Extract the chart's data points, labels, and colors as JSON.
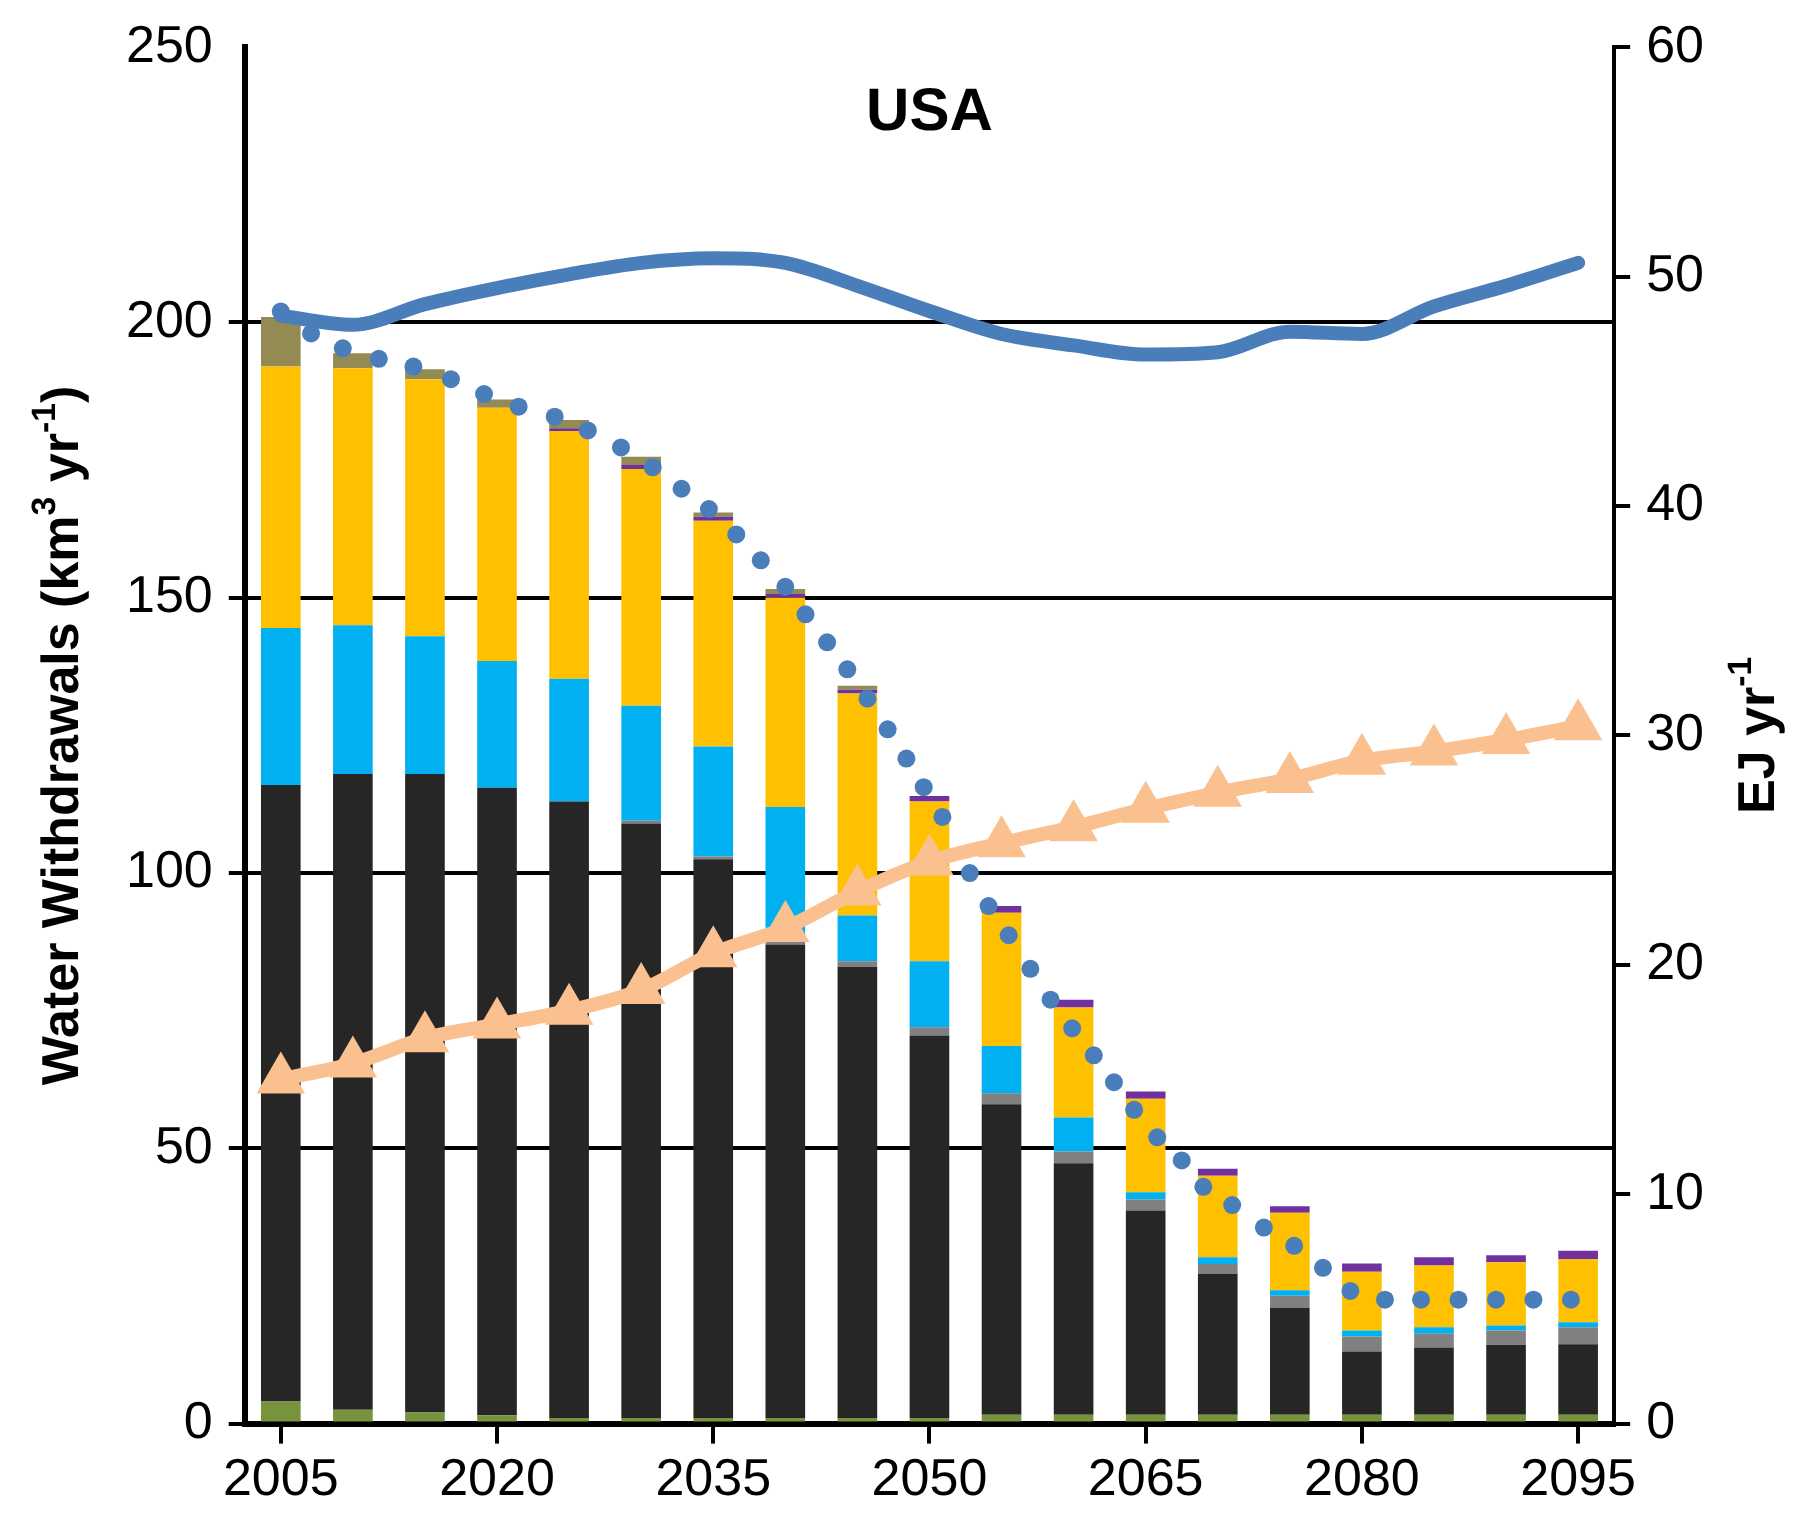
{
  "chart_data": {
    "type": "bar",
    "title": "USA",
    "ylabel": "Water Withdrawals (km$^{3}$ yr$^{-1}$)",
    "y2label": "EJ yr$^{-1}$",
    "stacked": true,
    "grid": "y",
    "legend": false,
    "x": [
      2005,
      2010,
      2015,
      2020,
      2025,
      2030,
      2035,
      2040,
      2045,
      2050,
      2055,
      2060,
      2065,
      2070,
      2075,
      2080,
      2085,
      2090,
      2095
    ],
    "xlim": [
      2002.5,
      2097.5
    ],
    "xticks": [
      2005,
      2020,
      2035,
      2050,
      2065,
      2080,
      2095
    ],
    "ylim": [
      0,
      250
    ],
    "yticks": [
      0,
      50,
      100,
      150,
      200,
      250
    ],
    "y2lim": [
      0,
      60
    ],
    "y2ticks": [
      0,
      10,
      20,
      30,
      40,
      50,
      60
    ],
    "series": [
      {
        "color": "#77933c",
        "values": [
          4,
          2.5,
          2,
          1.5,
          1,
          1,
          1,
          1,
          1,
          1,
          1.6,
          1.6,
          1.6,
          1.6,
          1.6,
          1.6,
          1.6,
          1.6,
          1.6
        ]
      },
      {
        "color": "#262626",
        "values": [
          112,
          115.5,
          116,
          114,
          112,
          108,
          101.5,
          86,
          82,
          69.5,
          56.4,
          45.7,
          37.1,
          25.6,
          19.4,
          11.5,
          12.2,
          12.7,
          12.8
        ]
      },
      {
        "color": "#808080",
        "values": [
          0,
          0,
          0,
          0,
          0,
          0.5,
          0.5,
          0.5,
          1,
          1.5,
          2,
          2.1,
          2,
          1.8,
          2.2,
          2.7,
          2.5,
          2.6,
          3.1
        ]
      },
      {
        "color": "#00b0f0",
        "values": [
          28.5,
          27,
          25,
          23,
          22.3,
          20.9,
          20,
          24.5,
          8.3,
          12,
          8.6,
          6.2,
          1.3,
          1.2,
          1,
          1.1,
          1.2,
          0.9,
          0.9
        ]
      },
      {
        "color": "#ffc000",
        "values": [
          47.5,
          46.7,
          46.7,
          46,
          45,
          43,
          41,
          38,
          40.3,
          29,
          24.2,
          20,
          17,
          14.8,
          14.1,
          10.7,
          11.2,
          11.5,
          11.5
        ]
      },
      {
        "color": "#7030a0",
        "values": [
          0,
          0,
          0,
          0,
          0.5,
          0.7,
          0.7,
          0.7,
          0.7,
          1,
          1.2,
          1.4,
          1.3,
          1.3,
          1.2,
          1.5,
          1.5,
          1.3,
          1.5
        ]
      },
      {
        "color": "#948a54",
        "values": [
          9,
          2.7,
          1.8,
          1.5,
          1.5,
          1.5,
          0.8,
          0.9,
          0.7,
          0,
          0,
          0,
          0,
          0,
          0,
          0,
          0,
          0,
          0
        ]
      },
      {
        "type": "line",
        "color": "#4a7ebb",
        "axis": "y2",
        "marker": "none",
        "line_style": "solid",
        "values": [
          48.3,
          47.9,
          48.8,
          49.5,
          50.1,
          50.6,
          50.8,
          50.6,
          49.6,
          48.5,
          47.5,
          47.0,
          46.6,
          46.7,
          47.6,
          47.5,
          48.7,
          49.6,
          50.6
        ]
      },
      {
        "type": "scatter",
        "color": "#4a7ebb",
        "marker": "circle",
        "x": [
          2005.0,
          2007.1,
          2009.3,
          2011.8,
          2014.2,
          2016.8,
          2019.1,
          2021.5,
          2024.0,
          2026.3,
          2028.6,
          2030.8,
          2032.8,
          2034.7,
          2036.6,
          2038.3,
          2040.0,
          2041.4,
          2042.9,
          2044.3,
          2045.7,
          2047.1,
          2048.4,
          2049.6,
          2050.9,
          2052.8,
          2054.1,
          2055.5,
          2057.0,
          2058.4,
          2059.9,
          2061.4,
          2062.8,
          2064.2,
          2065.8,
          2067.5,
          2069.0,
          2071.0,
          2073.2,
          2075.3,
          2077.3,
          2079.2,
          2081.6,
          2084.1,
          2086.7,
          2089.3,
          2091.9,
          2094.5
        ],
        "values": [
          202,
          198,
          195.3,
          193.4,
          192,
          189.7,
          187,
          184.7,
          182.9,
          180.4,
          177.3,
          173.7,
          169.8,
          166.1,
          161.5,
          156.8,
          152,
          147,
          141.9,
          137,
          131.7,
          126.1,
          120.8,
          115.6,
          110.2,
          100,
          94,
          88.7,
          82.6,
          77,
          71.8,
          66.9,
          62,
          57,
          52,
          47.8,
          43,
          39.7,
          35.6,
          32.3,
          28.3,
          24.1,
          22.5,
          22.5,
          22.5,
          22.5,
          22.5,
          22.5
        ]
      },
      {
        "type": "line",
        "color": "#fac090",
        "axis": "y2",
        "marker": "triangle",
        "line_style": "solid",
        "values": [
          15.0,
          15.7,
          16.8,
          17.4,
          18.0,
          18.9,
          20.5,
          21.6,
          23.2,
          24.5,
          25.3,
          26.0,
          26.8,
          27.5,
          28.1,
          28.9,
          29.3,
          29.8,
          30.4
        ]
      }
    ]
  }
}
